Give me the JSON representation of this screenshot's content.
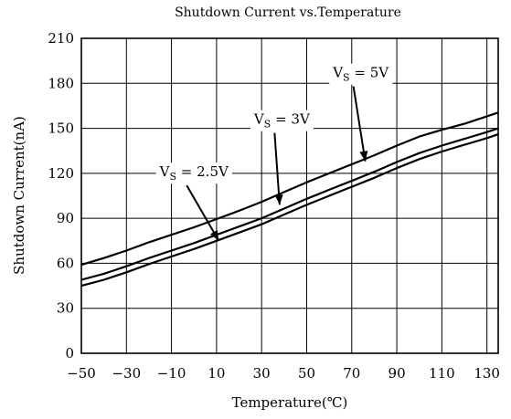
{
  "chart_data": {
    "type": "line",
    "title": "Shutdown Current vs.Temperature",
    "xlabel": "Temperature(℃)",
    "ylabel": "Shutdown Current(nA)",
    "xlim": [
      -50,
      135
    ],
    "ylim": [
      0,
      210
    ],
    "x_ticks": [
      -50,
      -30,
      -10,
      10,
      30,
      50,
      70,
      90,
      110,
      130
    ],
    "y_ticks": [
      0,
      30,
      60,
      90,
      120,
      150,
      180,
      210
    ],
    "grid": true,
    "x": [
      -50,
      -40,
      -30,
      -20,
      -10,
      0,
      10,
      20,
      30,
      40,
      50,
      60,
      70,
      80,
      90,
      100,
      110,
      120,
      130,
      135
    ],
    "series": [
      {
        "name": "VS = 5V",
        "label_main": "V",
        "label_sub": "S",
        "label_rest": " = 5V",
        "values": [
          59,
          63.5,
          68.5,
          74,
          79,
          84,
          89.5,
          95,
          101,
          107.5,
          114,
          120,
          126,
          132,
          138.5,
          144.5,
          149,
          153,
          158,
          160.5
        ]
      },
      {
        "name": "VS = 3V",
        "label_main": "V",
        "label_sub": "S",
        "label_rest": " = 3V",
        "values": [
          49,
          53,
          58,
          63.5,
          68.5,
          73.5,
          79,
          84.5,
          90,
          96.5,
          103,
          109,
          115,
          121,
          127.5,
          133.5,
          138.5,
          143,
          147.5,
          150
        ]
      },
      {
        "name": "VS = 2.5V",
        "label_main": "V",
        "label_sub": "S",
        "label_rest": " = 2.5V",
        "values": [
          45,
          49,
          54,
          59.5,
          64.5,
          69.5,
          75,
          80.5,
          86,
          92.5,
          99,
          105,
          111,
          117,
          123.5,
          129.5,
          134.5,
          139,
          143.5,
          146
        ]
      }
    ],
    "annotations": [
      {
        "series": 0,
        "text_x": 74,
        "text_y": 184,
        "arrow_to_x": 76,
        "arrow_to_y": 128
      },
      {
        "series": 1,
        "text_x": 39,
        "text_y": 153,
        "arrow_to_x": 38,
        "arrow_to_y": 99
      },
      {
        "series": 2,
        "text_x": 0,
        "text_y": 118,
        "arrow_to_x": 11,
        "arrow_to_y": 75
      }
    ]
  }
}
